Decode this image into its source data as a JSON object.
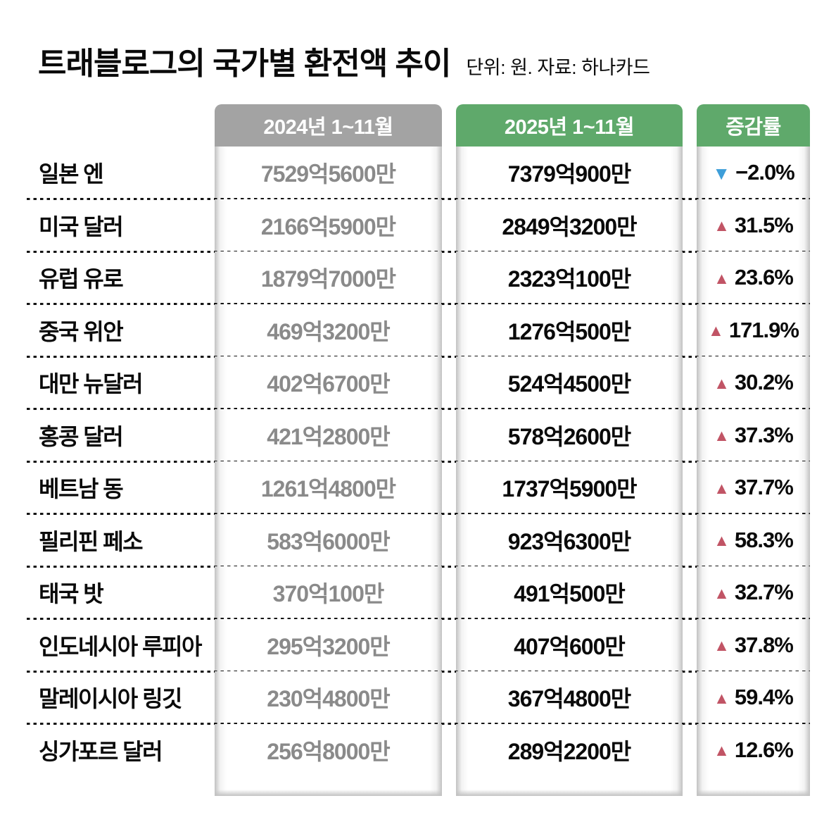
{
  "title": "트래블로그의 국가별 환전액 추이",
  "subtitle": "단위: 원. 자료: 하나카드",
  "colors": {
    "green": "#5fa96b",
    "pill-gray": "#a3a3a3",
    "muted": "#8a8a8a",
    "up": "#c15465",
    "down": "#3e9ed9",
    "band-edge": "#c2c2c2"
  },
  "columns": {
    "y2024": "2024년 1~11월",
    "y2025": "2025년 1~11월",
    "change": "증감률"
  },
  "rows": [
    {
      "country": "일본 엔",
      "y2024": "7529억5600만",
      "y2025": "7379억900만",
      "change": {
        "arrow": "▼",
        "direction": "down",
        "value": "−2.0%"
      }
    },
    {
      "country": "미국 달러",
      "y2024": "2166억5900만",
      "y2025": "2849억3200만",
      "change": {
        "arrow": "▲",
        "direction": "up",
        "value": "31.5%"
      }
    },
    {
      "country": "유럽 유로",
      "y2024": "1879억7000만",
      "y2025": "2323억100만",
      "change": {
        "arrow": "▲",
        "direction": "up",
        "value": "23.6%"
      }
    },
    {
      "country": "중국 위안",
      "y2024": "469억3200만",
      "y2025": "1276억500만",
      "change": {
        "arrow": "▲",
        "direction": "up",
        "value": "171.9%"
      }
    },
    {
      "country": "대만 뉴달러",
      "y2024": "402억6700만",
      "y2025": "524억4500만",
      "change": {
        "arrow": "▲",
        "direction": "up",
        "value": "30.2%"
      }
    },
    {
      "country": "홍콩 달러",
      "y2024": "421억2800만",
      "y2025": "578억2600만",
      "change": {
        "arrow": "▲",
        "direction": "up",
        "value": "37.3%"
      }
    },
    {
      "country": "베트남 동",
      "y2024": "1261억4800만",
      "y2025": "1737억5900만",
      "change": {
        "arrow": "▲",
        "direction": "up",
        "value": "37.7%"
      }
    },
    {
      "country": "필리핀 페소",
      "y2024": "583억6000만",
      "y2025": "923억6300만",
      "change": {
        "arrow": "▲",
        "direction": "up",
        "value": "58.3%"
      }
    },
    {
      "country": "태국 밧",
      "y2024": "370억100만",
      "y2025": "491억500만",
      "change": {
        "arrow": "▲",
        "direction": "up",
        "value": "32.7%"
      }
    },
    {
      "country": "인도네시아 루피아",
      "y2024": "295억3200만",
      "y2025": "407억600만",
      "change": {
        "arrow": "▲",
        "direction": "up",
        "value": "37.8%"
      }
    },
    {
      "country": "말레이시아 링깃",
      "y2024": "230억4800만",
      "y2025": "367억4800만",
      "change": {
        "arrow": "▲",
        "direction": "up",
        "value": "59.4%"
      }
    },
    {
      "country": "싱가포르 달러",
      "y2024": "256억8000만",
      "y2025": "289억2200만",
      "change": {
        "arrow": "▲",
        "direction": "up",
        "value": "12.6%"
      }
    }
  ],
  "chart_data": {
    "type": "table",
    "title": "트래블로그의 국가별 환전액 추이",
    "unit": "원",
    "source": "하나카드",
    "categories": [
      "일본 엔",
      "미국 달러",
      "유럽 유로",
      "중국 위안",
      "대만 뉴달러",
      "홍콩 달러",
      "베트남 동",
      "필리핀 페소",
      "태국 밧",
      "인도네시아 루피아",
      "말레이시아 링깃",
      "싱가포르 달러"
    ],
    "series": [
      {
        "name": "2024년 1~11월",
        "values": [
          "7529억5600만",
          "2166억5900만",
          "1879억7000만",
          "469억3200만",
          "402억6700만",
          "421억2800만",
          "1261억4800만",
          "583억6000만",
          "370억100만",
          "295억3200만",
          "230억4800만",
          "256억8000만"
        ]
      },
      {
        "name": "2025년 1~11월",
        "values": [
          "7379억900만",
          "2849억3200만",
          "2323억100만",
          "1276억500만",
          "524억4500만",
          "578억2600만",
          "1737억5900만",
          "923억6300만",
          "491억500만",
          "407억600만",
          "367억4800만",
          "289억2200만"
        ]
      },
      {
        "name": "증감률(%)",
        "values": [
          -2.0,
          31.5,
          23.6,
          171.9,
          30.2,
          37.3,
          37.7,
          58.3,
          32.7,
          37.8,
          59.4,
          12.6
        ]
      }
    ]
  }
}
